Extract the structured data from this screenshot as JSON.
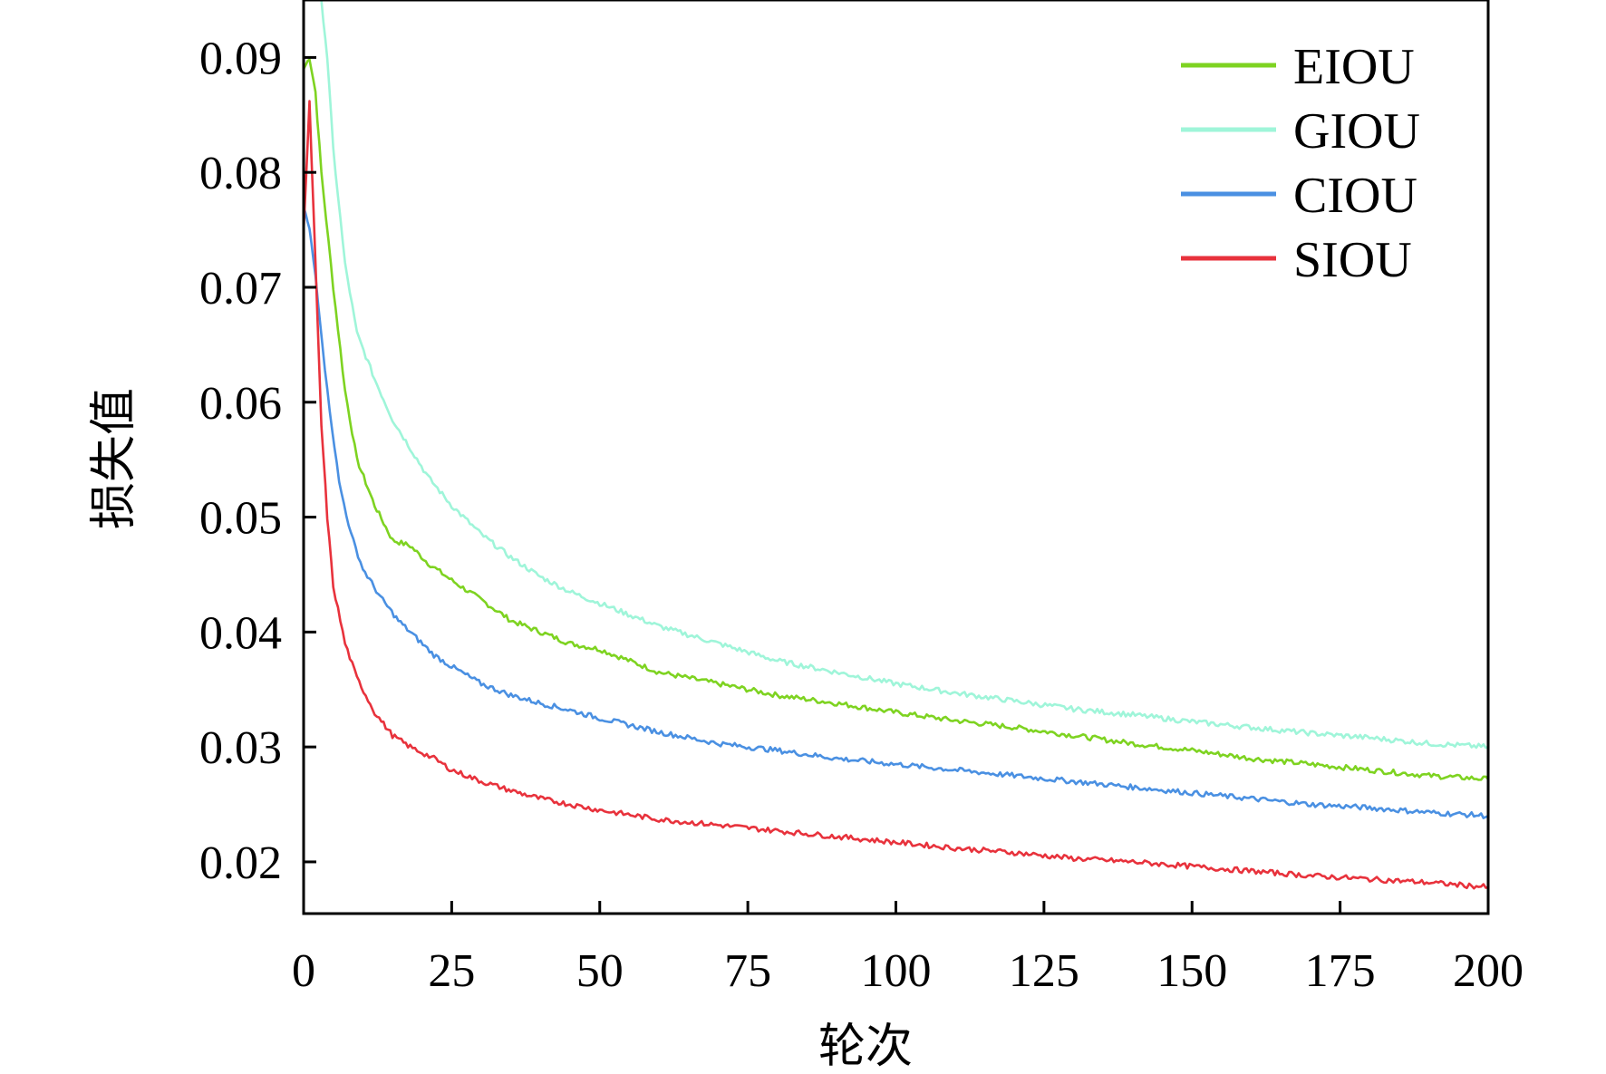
{
  "chart_data": {
    "type": "line",
    "title": "",
    "xlabel": "轮次",
    "ylabel": "损失值",
    "xlim": [
      0,
      200
    ],
    "ylim": [
      0.0155,
      0.095
    ],
    "xticks": [
      "0",
      "25",
      "50",
      "75",
      "100",
      "125",
      "150",
      "175",
      "200"
    ],
    "yticks": [
      "0.02",
      "0.03",
      "0.04",
      "0.05",
      "0.06",
      "0.07",
      "0.08",
      "0.09"
    ],
    "grid": false,
    "legend_position": "top-right",
    "series": [
      {
        "name": "EIOU",
        "color": "#7ED321",
        "x": [
          0,
          1,
          2,
          3,
          5,
          7,
          9,
          12,
          15,
          18,
          21,
          25,
          30,
          35,
          40,
          45,
          50,
          60,
          70,
          80,
          90,
          100,
          110,
          120,
          130,
          140,
          150,
          160,
          170,
          180,
          190,
          200
        ],
        "y": [
          0.089,
          0.09,
          0.087,
          0.08,
          0.07,
          0.061,
          0.055,
          0.051,
          0.048,
          0.0475,
          0.046,
          0.0445,
          0.0428,
          0.041,
          0.04,
          0.039,
          0.0385,
          0.0365,
          0.0355,
          0.0345,
          0.0338,
          0.033,
          0.0323,
          0.0317,
          0.031,
          0.0303,
          0.0297,
          0.029,
          0.0285,
          0.028,
          0.0275,
          0.0272
        ]
      },
      {
        "name": "GIOU",
        "color": "#9FF5D9",
        "x": [
          3,
          4,
          5,
          7,
          9,
          12,
          15,
          18,
          21,
          25,
          30,
          35,
          40,
          45,
          50,
          60,
          70,
          80,
          90,
          100,
          110,
          120,
          130,
          140,
          150,
          160,
          170,
          180,
          190,
          200
        ],
        "y": [
          0.095,
          0.09,
          0.082,
          0.072,
          0.066,
          0.062,
          0.0585,
          0.056,
          0.0535,
          0.051,
          0.0485,
          0.0465,
          0.0448,
          0.0435,
          0.0425,
          0.0405,
          0.039,
          0.0375,
          0.0365,
          0.0355,
          0.0347,
          0.034,
          0.0333,
          0.0328,
          0.0322,
          0.0317,
          0.0312,
          0.0308,
          0.0303,
          0.03
        ]
      },
      {
        "name": "CIOU",
        "color": "#4A90E2",
        "x": [
          0,
          1,
          2,
          4,
          6,
          8,
          10,
          13,
          16,
          19,
          22,
          25,
          30,
          35,
          40,
          45,
          50,
          60,
          70,
          80,
          90,
          100,
          110,
          120,
          130,
          140,
          150,
          160,
          170,
          180,
          190,
          200
        ],
        "y": [
          0.077,
          0.075,
          0.071,
          0.061,
          0.053,
          0.0485,
          0.0455,
          0.043,
          0.041,
          0.0395,
          0.038,
          0.037,
          0.0355,
          0.0345,
          0.0338,
          0.0332,
          0.0325,
          0.0313,
          0.0303,
          0.0297,
          0.029,
          0.0285,
          0.028,
          0.0275,
          0.027,
          0.0265,
          0.026,
          0.0255,
          0.025,
          0.0247,
          0.0243,
          0.024
        ]
      },
      {
        "name": "SIOU",
        "color": "#E8323C",
        "x": [
          0,
          1,
          2,
          3,
          4,
          5,
          7,
          9,
          12,
          15,
          18,
          22,
          25,
          30,
          35,
          40,
          45,
          50,
          60,
          70,
          80,
          90,
          100,
          110,
          120,
          130,
          140,
          150,
          160,
          170,
          180,
          190,
          200
        ],
        "y": [
          0.075,
          0.086,
          0.072,
          0.058,
          0.05,
          0.044,
          0.039,
          0.036,
          0.033,
          0.031,
          0.03,
          0.029,
          0.028,
          0.027,
          0.0262,
          0.0255,
          0.025,
          0.0245,
          0.0237,
          0.0232,
          0.0227,
          0.0222,
          0.0217,
          0.0212,
          0.0208,
          0.0203,
          0.02,
          0.0196,
          0.0192,
          0.0188,
          0.0185,
          0.0182,
          0.0178
        ]
      }
    ]
  }
}
